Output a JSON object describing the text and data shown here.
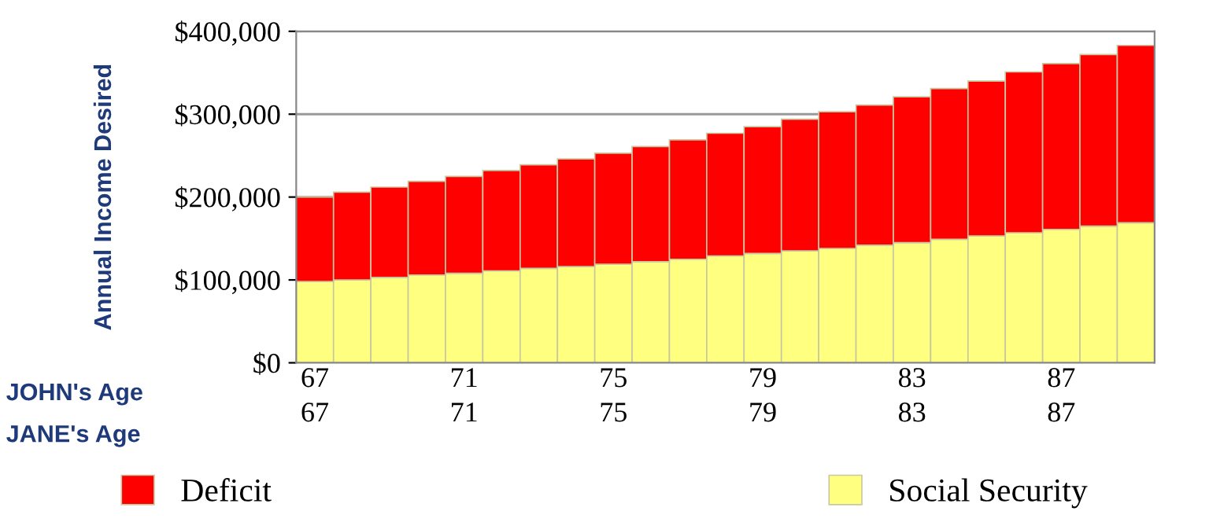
{
  "chart_data": {
    "type": "bar",
    "stacked": true,
    "ylabel": "Annual Income Desired",
    "categories": [
      "67\n67",
      null,
      null,
      null,
      "71\n71",
      null,
      null,
      null,
      "75\n75",
      null,
      null,
      null,
      "79\n79",
      null,
      null,
      null,
      "83\n83",
      null,
      null,
      null,
      "87\n87",
      null,
      null
    ],
    "series": [
      {
        "name": "Social Security",
        "color": "#ffff80",
        "values": [
          98000,
          100000,
          103000,
          106000,
          108000,
          111000,
          114000,
          116000,
          119000,
          122000,
          125000,
          129000,
          132000,
          135000,
          138000,
          142000,
          145000,
          149000,
          153000,
          157000,
          161000,
          165000,
          169000
        ]
      },
      {
        "name": "Deficit",
        "color": "#ff0000",
        "values": [
          102000,
          106000,
          109000,
          113000,
          117000,
          121000,
          125000,
          130000,
          134000,
          139000,
          144000,
          148000,
          153000,
          159000,
          165000,
          169000,
          176000,
          182000,
          187000,
          194000,
          200000,
          207000,
          214000
        ]
      }
    ],
    "ylim": [
      0,
      400000
    ],
    "yticks": [
      {
        "value": 0,
        "label": "$0"
      },
      {
        "value": 100000,
        "label": "$100,000"
      },
      {
        "value": 200000,
        "label": "$200,000"
      },
      {
        "value": 300000,
        "label": "$300,000"
      },
      {
        "value": 400000,
        "label": "$400,000"
      }
    ],
    "grid": "y",
    "legend": "bottom",
    "annotations": [
      "JOHN's Age",
      "JANE's Age"
    ]
  }
}
